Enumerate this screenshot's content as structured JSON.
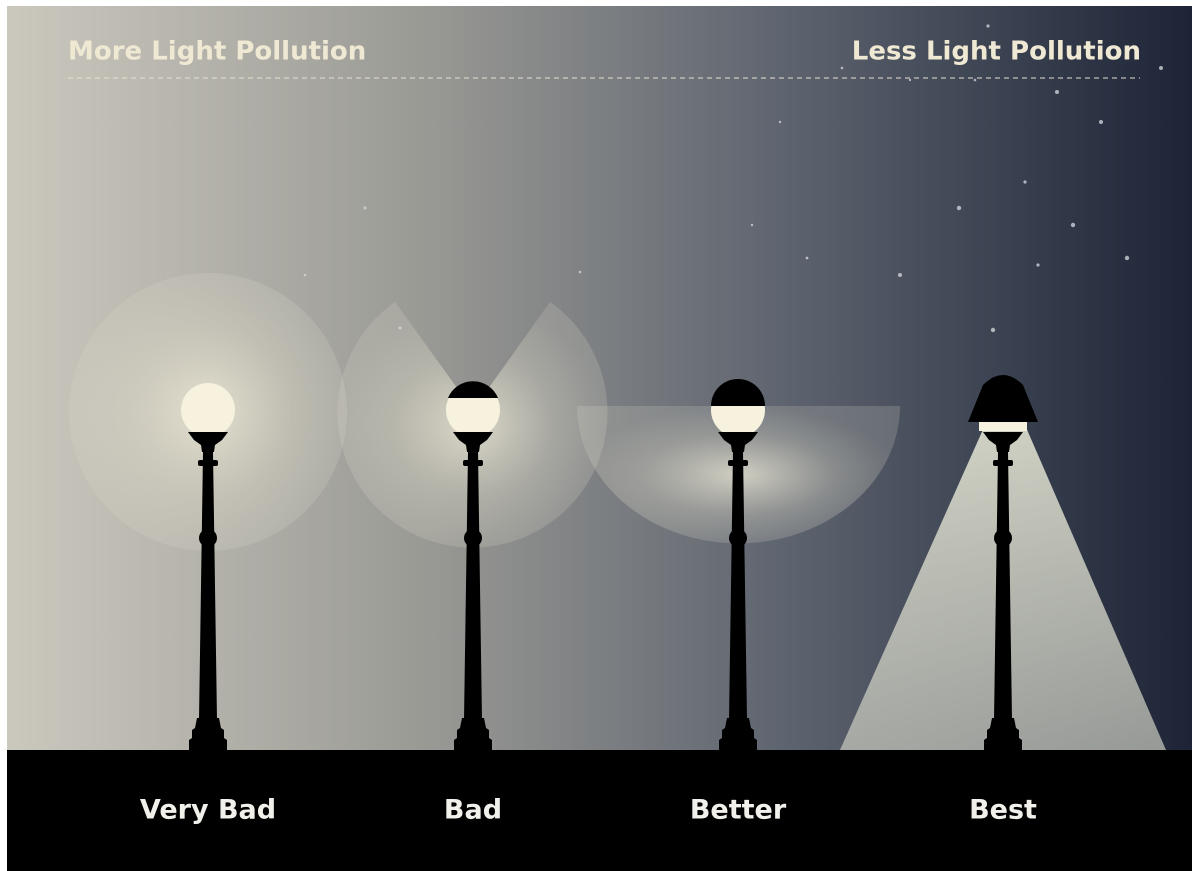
{
  "header": {
    "left": "More Light Pollution",
    "right": "Less Light Pollution"
  },
  "lamps": [
    {
      "label": "Very Bad"
    },
    {
      "label": "Bad"
    },
    {
      "label": "Better"
    },
    {
      "label": "Best"
    }
  ]
}
